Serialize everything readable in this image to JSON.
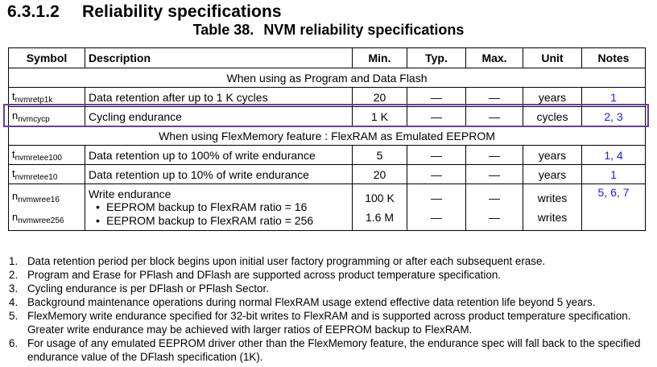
{
  "section": {
    "number": "6.3.1.2",
    "title": "Reliability specifications"
  },
  "table_caption": {
    "label": "Table 38.",
    "title": "NVM reliability specifications"
  },
  "headers": {
    "symbol": "Symbol",
    "description": "Description",
    "min": "Min.",
    "typ": "Typ.",
    "max": "Max.",
    "unit": "Unit",
    "notes": "Notes"
  },
  "sections": [
    {
      "title": "When using as Program and Data Flash"
    },
    {
      "title": "When using FlexMemory feature : FlexRAM as Emulated EEPROM"
    }
  ],
  "rows": [
    {
      "sym_main": "t",
      "sym_sub": "nvmretp1k",
      "desc": "Data retention after up to 1 K cycles",
      "min": "20",
      "typ": "—",
      "max": "—",
      "unit": "years",
      "notes": "1"
    },
    {
      "sym_main": "n",
      "sym_sub": "nvmcycp",
      "desc": "Cycling endurance",
      "min": "1 K",
      "typ": "—",
      "max": "—",
      "unit": "cycles",
      "notes": "2, 3"
    },
    {
      "sym_main": "t",
      "sym_sub": "nvmretee100",
      "desc": "Data retention up to 100% of write endurance",
      "min": "5",
      "typ": "—",
      "max": "—",
      "unit": "years",
      "notes": "1, 4"
    },
    {
      "sym_main": "t",
      "sym_sub": "nvmretee10",
      "desc": "Data retention up to 10% of write endurance",
      "min": "20",
      "typ": "—",
      "max": "—",
      "unit": "years",
      "notes": "1"
    }
  ],
  "write_endurance": {
    "sym1_main": "n",
    "sym1_sub": "nvmwree16",
    "sym2_main": "n",
    "sym2_sub": "nvmwree256",
    "desc": "Write endurance",
    "bullet1": "EEPROM backup to FlexRAM ratio = 16",
    "bullet2": "EEPROM backup to FlexRAM ratio = 256",
    "min1": "100 K",
    "min2": "1.6 M",
    "typ1": "—",
    "typ2": "—",
    "max1": "—",
    "max2": "—",
    "unit1": "writes",
    "unit2": "writes",
    "notes": "5, 6, 7"
  },
  "footnotes": [
    {
      "n": "1.",
      "text": "Data retention period per block begins upon initial user factory programming or after each subsequent erase."
    },
    {
      "n": "2.",
      "text": "Program and Erase for PFlash and DFlash are supported across product temperature specification."
    },
    {
      "n": "3.",
      "text": "Cycling endurance is per DFlash or PFlash Sector."
    },
    {
      "n": "4.",
      "text": "Background maintenance operations during normal FlexRAM usage extend effective data retention life beyond 5 years."
    },
    {
      "n": "5.",
      "text": "FlexMemory write endurance specified for 32-bit writes to FlexRAM and is supported across product temperature specification. Greater write endurance may be achieved with larger ratios of EEPROM backup to FlexRAM."
    },
    {
      "n": "6.",
      "text": "For usage of any emulated EEPROM driver other than the FlexMemory feature, the endurance spec will fall back to the specified endurance value of the DFlash specification (1K)."
    }
  ],
  "colors": {
    "highlight": "#6b3aa5",
    "note_link": "#1a1aff"
  }
}
